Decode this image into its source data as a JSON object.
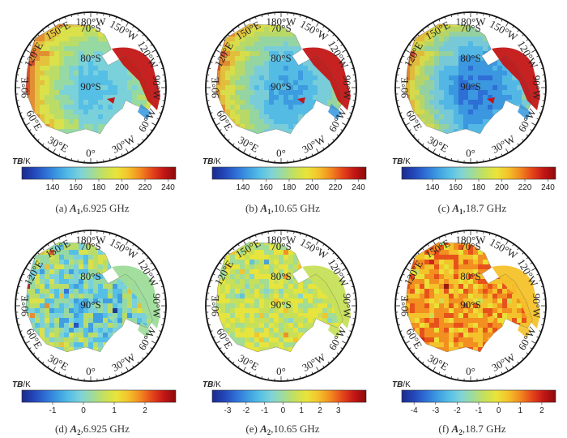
{
  "panels": [
    {
      "id": "a",
      "caption_prefix": "(a) ",
      "caption_var": "A",
      "caption_sub": "1",
      "caption_suffix": ",6.925 GHz",
      "colorbar_title_var": "TB",
      "colorbar_title_unit": "/K",
      "colorbar_ticks": [
        "140",
        "160",
        "180",
        "200",
        "220",
        "240"
      ],
      "colorbar_tick_positions": [
        0.2,
        0.35,
        0.5,
        0.65,
        0.8,
        0.95
      ],
      "field_range": [
        140,
        250
      ],
      "stats": {
        "base": 175,
        "coast": 225,
        "west_lobe": 225,
        "peninsula": 240
      }
    },
    {
      "id": "b",
      "caption_prefix": "(b) ",
      "caption_var": "A",
      "caption_sub": "1",
      "caption_suffix": ",10.65 GHz",
      "colorbar_title_var": "TB",
      "colorbar_title_unit": "/K",
      "colorbar_ticks": [
        "140",
        "160",
        "180",
        "200",
        "220",
        "240"
      ],
      "colorbar_tick_positions": [
        0.2,
        0.35,
        0.5,
        0.65,
        0.8,
        0.95
      ],
      "field_range": [
        140,
        250
      ],
      "stats": {
        "base": 168,
        "coast": 220,
        "west_lobe": 222,
        "peninsula": 238
      }
    },
    {
      "id": "c",
      "caption_prefix": "(c) ",
      "caption_var": "A",
      "caption_sub": "1",
      "caption_suffix": ",18.7 GHz",
      "colorbar_title_var": "TB",
      "colorbar_title_unit": "/K",
      "colorbar_ticks": [
        "140",
        "160",
        "180",
        "200",
        "220",
        "240"
      ],
      "colorbar_tick_positions": [
        0.2,
        0.35,
        0.5,
        0.65,
        0.8,
        0.95
      ],
      "field_range": [
        140,
        250
      ],
      "stats": {
        "base": 160,
        "coast": 215,
        "west_lobe": 215,
        "peninsula": 238
      }
    },
    {
      "id": "d",
      "caption_prefix": "(d) ",
      "caption_var": "A",
      "caption_sub": "2",
      "caption_suffix": ",6.925 GHz",
      "colorbar_title_var": "TB",
      "colorbar_title_unit": "/K",
      "colorbar_ticks": [
        "-1",
        "0",
        "1",
        "2"
      ],
      "colorbar_tick_positions": [
        0.2,
        0.4,
        0.6,
        0.8
      ],
      "field_range": [
        -2,
        2.5
      ],
      "stats": {
        "base": -0.5,
        "coast": 0.6,
        "west_lobe": 0.3,
        "peninsula": 0.2
      }
    },
    {
      "id": "e",
      "caption_prefix": "(e) ",
      "caption_var": "A",
      "caption_sub": "2",
      "caption_suffix": ",10.65 GHz",
      "colorbar_title_var": "TB",
      "colorbar_title_unit": "/K",
      "colorbar_ticks": [
        "-3",
        "-2",
        "-1",
        "0",
        "1",
        "2",
        "3"
      ],
      "colorbar_tick_positions": [
        0.1,
        0.22,
        0.34,
        0.46,
        0.58,
        0.7,
        0.82
      ],
      "field_range": [
        -3.5,
        3.5
      ],
      "stats": {
        "base": 0.2,
        "coast": 0.4,
        "west_lobe": 0.6,
        "peninsula": 0.1
      }
    },
    {
      "id": "f",
      "caption_prefix": "(f) ",
      "caption_var": "A",
      "caption_sub": "2",
      "caption_suffix": ",18.7 GHz",
      "colorbar_title_var": "TB",
      "colorbar_title_unit": "/K",
      "colorbar_ticks": [
        "-4",
        "-3",
        "-2",
        "-1",
        "0",
        "1",
        "2"
      ],
      "colorbar_tick_positions": [
        0.08,
        0.22,
        0.36,
        0.5,
        0.63,
        0.77,
        0.91
      ],
      "field_range": [
        -4.5,
        2.5
      ],
      "stats": {
        "base": 0.6,
        "coast": 0.8,
        "west_lobe": 0.8,
        "peninsula": 0.2
      }
    }
  ],
  "map_labels": {
    "lat": [
      "70°S",
      "80°S",
      "90°S"
    ],
    "lon": [
      "180°W",
      "150°W",
      "120°W",
      "90°W",
      "60°W",
      "30°W",
      "0°",
      "30°E",
      "60°E",
      "90°E",
      "120°E",
      "150°E"
    ]
  },
  "colormap": [
    "#1a2a8c",
    "#2346b8",
    "#2f6fd6",
    "#3d9be0",
    "#56bfe6",
    "#7fd3d8",
    "#9fdc9a",
    "#c7e05a",
    "#e9e43a",
    "#f4c22b",
    "#f28a1f",
    "#e5461a",
    "#c31616",
    "#8c0a0a"
  ]
}
